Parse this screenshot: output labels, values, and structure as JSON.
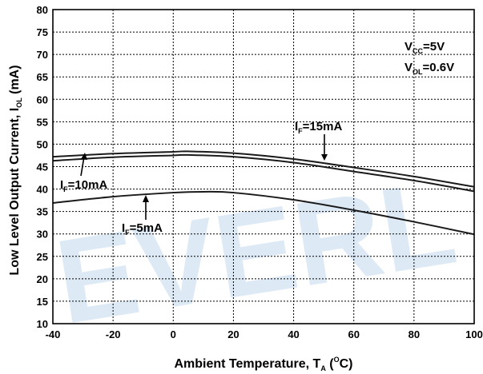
{
  "watermark": "EVERL",
  "chart_data": {
    "type": "line",
    "xlabel": "Ambient Temperature, T",
    "xlabel_sub": "A",
    "xlabel_unit_pre": " (",
    "xlabel_unit_sup": "O",
    "xlabel_unit_post": "C)",
    "ylabel": "Low Level Output Current, I",
    "ylabel_sub": "OL",
    "ylabel_unit": " (mA)",
    "xlim": [
      -40,
      100
    ],
    "ylim": [
      10,
      80
    ],
    "x_ticks": [
      -40,
      -20,
      0,
      20,
      40,
      60,
      80,
      100
    ],
    "y_ticks": [
      10,
      15,
      20,
      25,
      30,
      35,
      40,
      45,
      50,
      55,
      60,
      65,
      70,
      75,
      80
    ],
    "grid": true,
    "conditions": [
      {
        "main": "V",
        "sub": "CC",
        "rest": "=5V"
      },
      {
        "main": "V",
        "sub": "OL",
        "rest": "=0.6V"
      }
    ],
    "series": [
      {
        "name": "IF=15mA",
        "label_main": "I",
        "label_sub": "F",
        "label_rest": "=15mA",
        "x": [
          -40,
          -20,
          0,
          5,
          20,
          40,
          60,
          80,
          100
        ],
        "y": [
          47.2,
          47.9,
          48.3,
          48.4,
          48.0,
          46.7,
          44.8,
          42.8,
          40.5
        ]
      },
      {
        "name": "IF=10mA",
        "label_main": "I",
        "label_sub": "F",
        "label_rest": "=10mA",
        "x": [
          -40,
          -20,
          0,
          5,
          20,
          40,
          60,
          80,
          100
        ],
        "y": [
          46.3,
          47.1,
          47.5,
          47.6,
          47.2,
          45.9,
          43.9,
          41.9,
          39.5
        ]
      },
      {
        "name": "IF=5mA",
        "label_main": "I",
        "label_sub": "F",
        "label_rest": "=5mA",
        "x": [
          -40,
          -20,
          0,
          10,
          20,
          40,
          60,
          80,
          100
        ],
        "y": [
          36.9,
          38.3,
          39.2,
          39.4,
          39.2,
          37.6,
          35.3,
          32.7,
          29.9
        ]
      }
    ]
  }
}
